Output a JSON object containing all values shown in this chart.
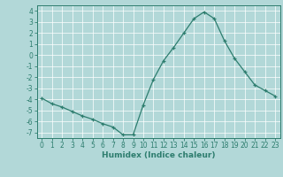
{
  "x": [
    0,
    1,
    2,
    3,
    4,
    5,
    6,
    7,
    8,
    9,
    10,
    11,
    12,
    13,
    14,
    15,
    16,
    17,
    18,
    19,
    20,
    21,
    22,
    23
  ],
  "y": [
    -3.9,
    -4.4,
    -4.7,
    -5.1,
    -5.5,
    -5.8,
    -6.2,
    -6.5,
    -7.2,
    -7.2,
    -4.5,
    -2.2,
    -0.5,
    0.7,
    2.0,
    3.3,
    3.9,
    3.3,
    1.3,
    -0.3,
    -1.5,
    -2.7,
    -3.2,
    -3.7
  ],
  "line_color": "#2d7d6e",
  "bg_color": "#b2d8d8",
  "grid_color": "#ffffff",
  "xlabel": "Humidex (Indice chaleur)",
  "ylim": [
    -7.5,
    4.5
  ],
  "xlim": [
    -0.5,
    23.5
  ],
  "yticks": [
    -7,
    -6,
    -5,
    -4,
    -3,
    -2,
    -1,
    0,
    1,
    2,
    3,
    4
  ],
  "xticks": [
    0,
    1,
    2,
    3,
    4,
    5,
    6,
    7,
    8,
    9,
    10,
    11,
    12,
    13,
    14,
    15,
    16,
    17,
    18,
    19,
    20,
    21,
    22,
    23
  ],
  "tick_color": "#2d7d6e",
  "label_fontsize": 6.5,
  "tick_fontsize": 5.5,
  "marker": "+"
}
